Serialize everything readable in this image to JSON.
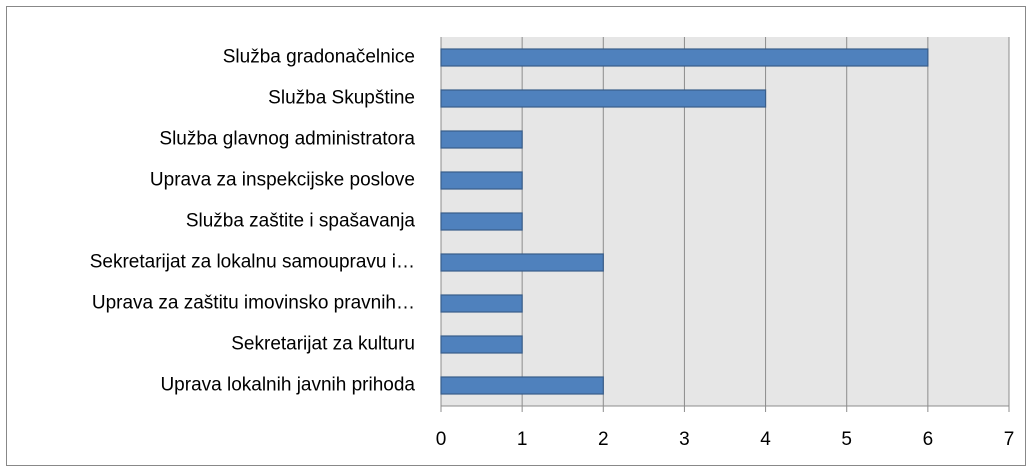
{
  "chart_data": {
    "type": "bar",
    "orientation": "horizontal",
    "categories": [
      "Služba gradonačelnice",
      "Služba Skupštine",
      "Služba glavnog administratora",
      "Uprava za inspekcijske poslove",
      "Služba zaštite i spašavanja",
      "Sekretarijat za lokalnu samoupravu i…",
      "Uprava za zaštitu imovinsko pravnih…",
      "Sekretarijat za kulturu",
      "Uprava lokalnih javnih prihoda"
    ],
    "values": [
      6,
      4,
      1,
      1,
      1,
      2,
      1,
      1,
      2
    ],
    "color": "#4f81bd",
    "xlim": [
      0,
      7
    ],
    "xticks": [
      0,
      1,
      2,
      3,
      4,
      5,
      6,
      7
    ],
    "grid": true
  }
}
